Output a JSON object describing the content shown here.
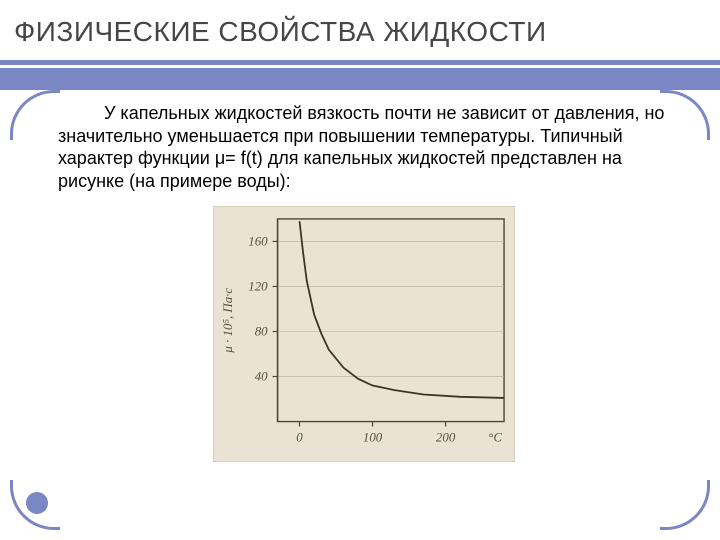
{
  "title": "ФИЗИЧЕСКИЕ СВОЙСТВА ЖИДКОСТИ",
  "title_fontsize": 28,
  "title_color": "#44464a",
  "paragraph": "У капельных жидкостей вязкость почти не зависит от давления, но значительно уменьшается при повышении температуры. Типичный характер функции μ= f(t) для капельных жидкостей представлен на рисунке (на примере воды):",
  "paragraph_fontsize": 18,
  "paragraph_color": "#000000",
  "accent_color": "#7b86c4",
  "chart": {
    "type": "line",
    "background_color": "#eae3d3",
    "axis_color": "#4d4434",
    "line_color": "#3b342a",
    "grid_color": "#b6ad97",
    "y_label": "μ · 10⁵, Па·с",
    "x_label": "°C",
    "x_ticks": [
      0,
      100,
      200
    ],
    "y_ticks": [
      40,
      80,
      120,
      160
    ],
    "xlim": [
      -30,
      280
    ],
    "ylim": [
      0,
      180
    ],
    "tick_fontsize": 13,
    "curve": [
      {
        "x": 0,
        "y": 178
      },
      {
        "x": 5,
        "y": 150
      },
      {
        "x": 10,
        "y": 125
      },
      {
        "x": 20,
        "y": 95
      },
      {
        "x": 30,
        "y": 78
      },
      {
        "x": 40,
        "y": 64
      },
      {
        "x": 60,
        "y": 48
      },
      {
        "x": 80,
        "y": 38
      },
      {
        "x": 100,
        "y": 32
      },
      {
        "x": 130,
        "y": 28
      },
      {
        "x": 170,
        "y": 24
      },
      {
        "x": 220,
        "y": 22
      },
      {
        "x": 280,
        "y": 21
      }
    ],
    "line_width": 1.8
  }
}
